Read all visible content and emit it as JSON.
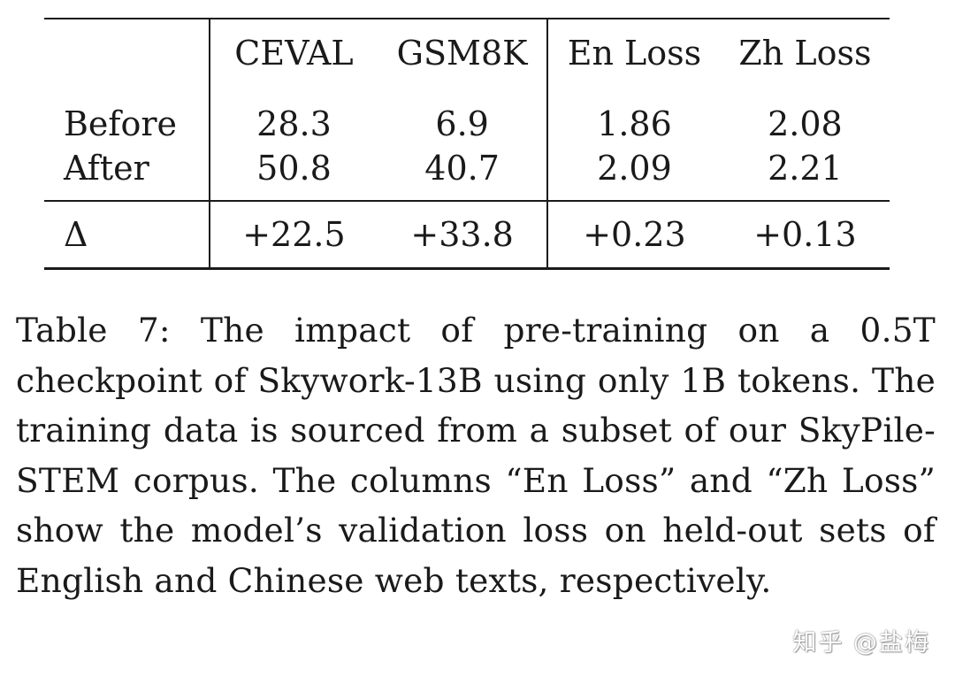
{
  "table": {
    "headers": [
      "",
      "CEVAL",
      "GSM8K",
      "En Loss",
      "Zh Loss"
    ],
    "rows": [
      {
        "label": "Before",
        "values": [
          "28.3",
          "6.9",
          "1.86",
          "2.08"
        ]
      },
      {
        "label": "After",
        "values": [
          "50.8",
          "40.7",
          "2.09",
          "2.21"
        ]
      }
    ],
    "delta": {
      "label": "Δ",
      "values": [
        "+22.5",
        "+33.8",
        "+0.23",
        "+0.13"
      ]
    }
  },
  "caption": "Table 7: The impact of pre-training on a 0.5T checkpoint of Skywork-13B using only 1B tokens. The training data is sourced from a subset of our SkyPile-STEM corpus. The columns “En Loss” and “Zh Loss” show the model’s validation loss on held-out sets of English and Chinese web texts, respectively.",
  "watermark": "知乎 @盐梅"
}
